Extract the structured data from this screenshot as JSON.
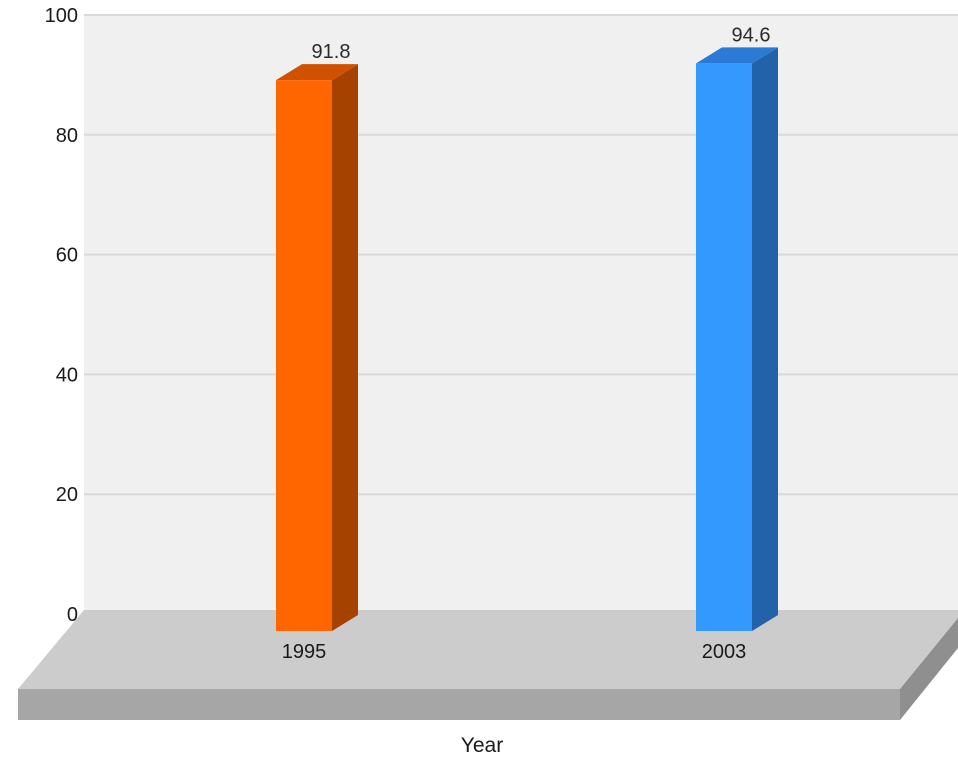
{
  "chart_data": {
    "type": "bar",
    "style": "3d",
    "categories": [
      "1995",
      "2003"
    ],
    "values": [
      91.8,
      94.6
    ],
    "value_labels": [
      "91.8",
      "94.6"
    ],
    "title": "",
    "xlabel": "Year",
    "ylabel": "",
    "ylim": [
      0,
      100
    ],
    "yticks": [
      0,
      20,
      40,
      60,
      80,
      100
    ],
    "grid": true,
    "legend": "none",
    "colors": {
      "bars": [
        "#ff6600",
        "#3399ff"
      ],
      "bar_sides": [
        "#a54200",
        "#2262a8"
      ],
      "bar_tops": [
        "#cf5200",
        "#2a7ad6"
      ],
      "plot_background": "#f0f0f0",
      "gridline": "#d9d9d9",
      "floor_top": "#cccccc",
      "floor_front": "#a6a6a6",
      "floor_side": "#8f8f8f"
    }
  }
}
